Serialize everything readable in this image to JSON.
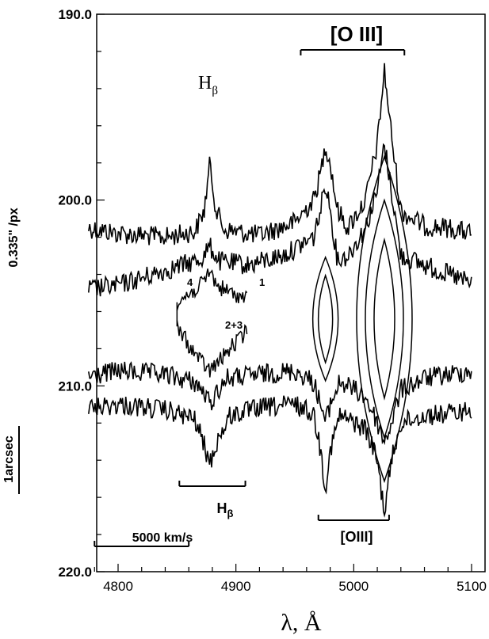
{
  "chart_data": {
    "type": "line",
    "title": "",
    "xlabel": "λ, Å",
    "ylabel": "0.335\" /px",
    "xlim": [
      4772,
      5100
    ],
    "ylim": [
      190.0,
      220.0
    ],
    "y_inverted": true,
    "x_ticks": [
      "4800",
      "4900",
      "5000",
      "5100"
    ],
    "y_ticks": [
      "190.0",
      "200.0",
      "210.0",
      "220.0"
    ],
    "grid": false,
    "series": [
      {
        "name": "",
        "baseline_y": 201.5,
        "x": [
          4775,
          4800,
          4840,
          4865,
          4873,
          4878,
          4883,
          4890,
          4920,
          4950,
          4966,
          4972,
          4976,
          4980,
          4986,
          4995,
          5010,
          5020,
          5026,
          5032,
          5040,
          5060,
          5080,
          5100
        ],
        "y": [
          201.5,
          201.8,
          202.0,
          201.7,
          200.6,
          198.0,
          200.5,
          201.6,
          201.9,
          201.2,
          200.0,
          198.5,
          197.0,
          198.0,
          200.5,
          201.5,
          200.0,
          197.0,
          193.0,
          196.5,
          200.6,
          201.4,
          201.5,
          201.8
        ]
      },
      {
        "name": "",
        "baseline_y": 204.5,
        "x": [
          4775,
          4800,
          4840,
          4870,
          4878,
          4886,
          4910,
          4940,
          4966,
          4972,
          4976,
          4980,
          4986,
          4995,
          5010,
          5020,
          5026,
          5032,
          5040,
          5060,
          5080,
          5100
        ],
        "y": [
          204.8,
          204.6,
          203.8,
          203.2,
          202.5,
          203.3,
          203.5,
          203.0,
          202.0,
          200.5,
          199.0,
          200.5,
          203.2,
          203.0,
          201.5,
          199.5,
          197.0,
          199.5,
          203.0,
          203.5,
          204.0,
          204.5
        ]
      },
      {
        "name": "",
        "baseline_y": 209.4,
        "x": [
          4775,
          4800,
          4840,
          4865,
          4874,
          4878,
          4883,
          4892,
          4920,
          4950,
          4966,
          4972,
          4976,
          4980,
          4988,
          4995,
          5010,
          5020,
          5026,
          5032,
          5040,
          5060,
          5080,
          5100
        ],
        "y": [
          209.5,
          209.2,
          209.4,
          209.8,
          210.5,
          211.0,
          210.4,
          209.6,
          209.4,
          209.2,
          209.8,
          211.0,
          212.0,
          211.0,
          209.8,
          210.0,
          210.6,
          212.0,
          213.0,
          212.0,
          210.2,
          209.6,
          209.4,
          209.2
        ]
      },
      {
        "name": "",
        "baseline_y": 211.4,
        "x": [
          4775,
          4800,
          4840,
          4865,
          4872,
          4878,
          4884,
          4895,
          4920,
          4950,
          4966,
          4972,
          4976,
          4980,
          4988,
          4995,
          5010,
          5020,
          5026,
          5032,
          5040,
          5060,
          5080,
          5100
        ],
        "y": [
          211.2,
          211.0,
          211.3,
          211.8,
          213.0,
          214.2,
          213.0,
          211.6,
          211.2,
          211.0,
          211.5,
          213.5,
          215.5,
          213.5,
          211.6,
          211.8,
          212.3,
          214.0,
          216.8,
          214.0,
          212.0,
          211.6,
          211.5,
          211.3
        ]
      }
    ],
    "inner_contour": {
      "upper": {
        "x": [
          4850,
          4862,
          4872,
          4878,
          4884,
          4895,
          4910
        ],
        "y": [
          205.5,
          205.0,
          204.5,
          203.8,
          204.6,
          205.0,
          205.3
        ]
      },
      "lower": {
        "x": [
          4850,
          4862,
          4872,
          4878,
          4884,
          4895,
          4910
        ],
        "y": [
          206.8,
          208.0,
          208.8,
          209.2,
          208.8,
          208.0,
          207.0
        ]
      }
    },
    "annotations": {
      "hbeta_top": "H",
      "hbeta_top_sub": "β",
      "oiii_top": "[O III]",
      "hbeta_bottom": "H",
      "hbeta_bottom_sub": "β",
      "oiii_bottom": "[OIII]",
      "velocity_scale": "5000 km/s",
      "arcsec_scale": "1arcsec",
      "contour_label_4": "4",
      "contour_label_1": "1",
      "contour_label_23": "2+3"
    },
    "bracket_ranges": {
      "oiii_top": [
        4955,
        5043
      ],
      "hbeta_bottom": [
        4852,
        4908
      ],
      "oiii_bottom": [
        4970,
        5030
      ],
      "velocity_scale": [
        4780,
        4860
      ]
    }
  }
}
